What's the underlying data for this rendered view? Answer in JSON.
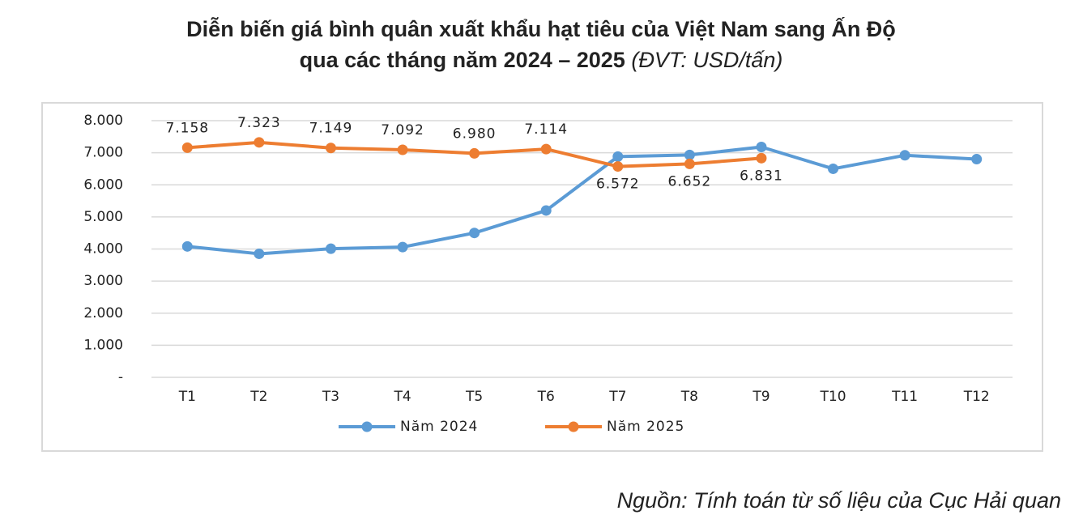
{
  "chart_data": {
    "type": "line",
    "title": "Diễn biến giá bình quân xuất khẩu hạt tiêu của Việt Nam sang Ấn Độ",
    "subtitle": "qua các tháng năm 2024 – 2025",
    "unit": "(ĐVT: USD/tấn)",
    "source": "Nguồn: Tính toán từ số liệu của Cục Hải quan",
    "categories": [
      "T1",
      "T2",
      "T3",
      "T4",
      "T5",
      "T6",
      "T7",
      "T8",
      "T9",
      "T10",
      "T11",
      "T12"
    ],
    "series": [
      {
        "name": "Năm 2024",
        "color": "#5b9bd5",
        "values": [
          4080,
          3850,
          4010,
          4060,
          4500,
          5200,
          6880,
          6930,
          7180,
          6500,
          6920,
          6800
        ]
      },
      {
        "name": "Năm 2025",
        "color": "#ed7d31",
        "values": [
          7158,
          7323,
          7149,
          7092,
          6980,
          7114,
          6572,
          6652,
          6831,
          null,
          null,
          null
        ],
        "value_labels": [
          "7.158",
          "7.323",
          "7.149",
          "7.092",
          "6.980",
          "7.114",
          "6.572",
          "6.652",
          "6.831",
          null,
          null,
          null
        ]
      }
    ],
    "ylim": [
      0,
      8000
    ],
    "yticks": [
      {
        "value": 0,
        "label": "-"
      },
      {
        "value": 1000,
        "label": "1.000"
      },
      {
        "value": 2000,
        "label": "2.000"
      },
      {
        "value": 3000,
        "label": "3.000"
      },
      {
        "value": 4000,
        "label": "4.000"
      },
      {
        "value": 5000,
        "label": "5.000"
      },
      {
        "value": 6000,
        "label": "6.000"
      },
      {
        "value": 7000,
        "label": "7.000"
      },
      {
        "value": 8000,
        "label": "8.000"
      }
    ],
    "grid": true,
    "legend": "bottom"
  }
}
